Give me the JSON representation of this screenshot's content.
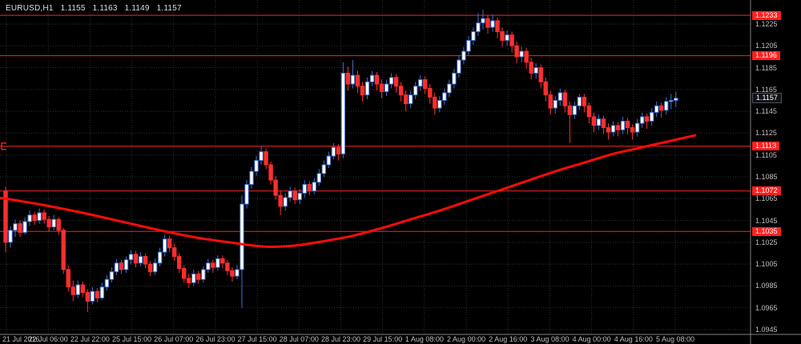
{
  "header": {
    "symbol_period": "EURUSD,H1",
    "open": "1.1155",
    "high": "1.1163",
    "low": "1.1149",
    "close": "1.1157"
  },
  "colors": {
    "background": "#000000",
    "grid": "#303030",
    "bull_fill": "#ffffff",
    "bull_border": "#3e6fd0",
    "bear": "#ff2e2e",
    "ma_line": "#ff0b0b",
    "level_line": "#ff2020",
    "level_chip_bg": "#ff2020",
    "level_chip_text": "#ffffff",
    "current_chip_bg": "#101418",
    "current_chip_text": "#ffffff",
    "axis_text": "#bfbfbf",
    "axis_line": "#808080"
  },
  "chart_data": {
    "type": "candlestick",
    "title": "EURUSD,H1",
    "price_scale": 0.0001,
    "y_range": [
      1.09406,
      1.1247
    ],
    "y_ticks": [
      1.1225,
      1.1205,
      1.1185,
      1.1165,
      1.1145,
      1.1125,
      1.1105,
      1.1085,
      1.1065,
      1.1045,
      1.1025,
      1.1005,
      1.0985,
      1.0965,
      1.0945
    ],
    "time_labels": [
      "21 Jul 2016",
      "22 Jul 06:00",
      "22 Jul 22:00",
      "25 Jul 15:00",
      "26 Jul 07:00",
      "26 Jul 23:00",
      "27 Jul 15:00",
      "28 Jul 07:00",
      "28 Jul 23:00",
      "29 Jul 15:00",
      "1 Aug 08:00",
      "2 Aug 00:00",
      "2 Aug 16:00",
      "3 Aug 08:00",
      "4 Aug 00:00",
      "4 Aug 16:00",
      "5 Aug 08:00"
    ],
    "levels": [
      1.1233,
      1.1196,
      1.1113,
      1.1072,
      1.1035
    ],
    "level_marker_price": 1.1113,
    "current_price": 1.1157,
    "ma_points": [
      [
        -1,
        1.10655
      ],
      [
        0,
        1.1065
      ],
      [
        8,
        1.1059
      ],
      [
        16,
        1.1052
      ],
      [
        24,
        1.1044
      ],
      [
        32,
        1.1036
      ],
      [
        40,
        1.1029
      ],
      [
        48,
        1.1024
      ],
      [
        54,
        1.1021
      ],
      [
        60,
        1.1022
      ],
      [
        66,
        1.1026
      ],
      [
        72,
        1.1031
      ],
      [
        78,
        1.1038
      ],
      [
        84,
        1.1046
      ],
      [
        90,
        1.1054
      ],
      [
        96,
        1.1063
      ],
      [
        102,
        1.1072
      ],
      [
        108,
        1.1081
      ],
      [
        114,
        1.109
      ],
      [
        120,
        1.1098
      ],
      [
        126,
        1.1106
      ],
      [
        132,
        1.1112
      ],
      [
        138,
        1.1118
      ],
      [
        143,
        1.1123
      ]
    ],
    "candles": [
      [
        11072,
        11076,
        11016,
        11025
      ],
      [
        11025,
        11040,
        11020,
        11036
      ],
      [
        11036,
        11046,
        11030,
        11042
      ],
      [
        11042,
        11045,
        11030,
        11034
      ],
      [
        11034,
        11048,
        11032,
        11044
      ],
      [
        11044,
        11054,
        11040,
        11050
      ],
      [
        11050,
        11053,
        11041,
        11045
      ],
      [
        11045,
        11056,
        11042,
        11052
      ],
      [
        11052,
        11055,
        11042,
        11046
      ],
      [
        11046,
        11049,
        11035,
        11039
      ],
      [
        11039,
        11050,
        11036,
        11046
      ],
      [
        11046,
        11048,
        11032,
        11036
      ],
      [
        11036,
        11038,
        10996,
        11000
      ],
      [
        11000,
        11004,
        10980,
        10984
      ],
      [
        10984,
        10990,
        10971,
        10977
      ],
      [
        10977,
        10990,
        10974,
        10986
      ],
      [
        10986,
        10989,
        10975,
        10979
      ],
      [
        10979,
        10982,
        10961,
        10971
      ],
      [
        10971,
        10984,
        10968,
        10980
      ],
      [
        10980,
        10983,
        10970,
        10974
      ],
      [
        10974,
        10988,
        10972,
        10984
      ],
      [
        10984,
        10995,
        10981,
        10991
      ],
      [
        10991,
        11002,
        10988,
        10998
      ],
      [
        10998,
        11010,
        10995,
        11006
      ],
      [
        11006,
        11009,
        10996,
        11000
      ],
      [
        11000,
        11012,
        10997,
        11009
      ],
      [
        11009,
        11018,
        11005,
        11014
      ],
      [
        11014,
        11017,
        11002,
        11006
      ],
      [
        11006,
        11016,
        11003,
        11012
      ],
      [
        11012,
        11015,
        11001,
        11005
      ],
      [
        11005,
        11008,
        10994,
        10998
      ],
      [
        10998,
        11010,
        10995,
        11006
      ],
      [
        11006,
        11020,
        11003,
        11016
      ],
      [
        11016,
        11032,
        11012,
        11028
      ],
      [
        11028,
        11031,
        11016,
        11020
      ],
      [
        11020,
        11024,
        11008,
        11012
      ],
      [
        11012,
        11015,
        10997,
        11001
      ],
      [
        11001,
        11004,
        10988,
        10992
      ],
      [
        10992,
        10996,
        10983,
        10988
      ],
      [
        10988,
        11000,
        10985,
        10996
      ],
      [
        10996,
        10999,
        10987,
        10991
      ],
      [
        10991,
        11003,
        10988,
        11000
      ],
      [
        11000,
        11010,
        10997,
        11006
      ],
      [
        11006,
        11009,
        10997,
        11002
      ],
      [
        11002,
        11013,
        10999,
        11010
      ],
      [
        11010,
        11013,
        11001,
        11006
      ],
      [
        11006,
        11009,
        10995,
        10999
      ],
      [
        10999,
        11002,
        10989,
        10994
      ],
      [
        10994,
        11004,
        10991,
        11000
      ],
      [
        11000,
        11068,
        10965,
        11060
      ],
      [
        11060,
        11082,
        11056,
        11078
      ],
      [
        11078,
        11094,
        11074,
        11090
      ],
      [
        11090,
        11104,
        11086,
        11100
      ],
      [
        11100,
        11113,
        11096,
        11108
      ],
      [
        11108,
        11111,
        11092,
        11096
      ],
      [
        11096,
        11099,
        11078,
        11082
      ],
      [
        11082,
        11086,
        11064,
        11068
      ],
      [
        11068,
        11072,
        11050,
        11058
      ],
      [
        11058,
        11070,
        11054,
        11066
      ],
      [
        11066,
        11076,
        11062,
        11072
      ],
      [
        11072,
        11075,
        11060,
        11064
      ],
      [
        11064,
        11074,
        11060,
        11070
      ],
      [
        11070,
        11082,
        11066,
        11078
      ],
      [
        11078,
        11081,
        11068,
        11072
      ],
      [
        11072,
        11084,
        11069,
        11080
      ],
      [
        11080,
        11092,
        11077,
        11088
      ],
      [
        11088,
        11100,
        11085,
        11096
      ],
      [
        11096,
        11108,
        11093,
        11104
      ],
      [
        11104,
        11116,
        11101,
        11112
      ],
      [
        11112,
        11115,
        11100,
        11106
      ],
      [
        11106,
        11190,
        11102,
        11180
      ],
      [
        11180,
        11186,
        11164,
        11170
      ],
      [
        11170,
        11192,
        11166,
        11178
      ],
      [
        11178,
        11182,
        11162,
        11168
      ],
      [
        11168,
        11172,
        11154,
        11160
      ],
      [
        11160,
        11176,
        11156,
        11172
      ],
      [
        11172,
        11182,
        11168,
        11178
      ],
      [
        11178,
        11181,
        11164,
        11170
      ],
      [
        11170,
        11174,
        11157,
        11163
      ],
      [
        11163,
        11174,
        11159,
        11170
      ],
      [
        11170,
        11180,
        11166,
        11176
      ],
      [
        11176,
        11179,
        11162,
        11168
      ],
      [
        11168,
        11172,
        11154,
        11160
      ],
      [
        11160,
        11164,
        11145,
        11152
      ],
      [
        11152,
        11164,
        11148,
        11160
      ],
      [
        11160,
        11172,
        11156,
        11168
      ],
      [
        11168,
        11178,
        11164,
        11174
      ],
      [
        11174,
        11177,
        11161,
        11166
      ],
      [
        11166,
        11170,
        11152,
        11158
      ],
      [
        11158,
        11162,
        11142,
        11148
      ],
      [
        11148,
        11159,
        11144,
        11155
      ],
      [
        11155,
        11166,
        11151,
        11162
      ],
      [
        11162,
        11174,
        11158,
        11170
      ],
      [
        11170,
        11184,
        11166,
        11180
      ],
      [
        11180,
        11196,
        11176,
        11192
      ],
      [
        11192,
        11204,
        11188,
        11200
      ],
      [
        11200,
        11214,
        11196,
        11210
      ],
      [
        11210,
        11222,
        11206,
        11218
      ],
      [
        11218,
        11235,
        11214,
        11226
      ],
      [
        11226,
        11238,
        11220,
        11230
      ],
      [
        11230,
        11233,
        11216,
        11222
      ],
      [
        11222,
        11234,
        11218,
        11228
      ],
      [
        11228,
        11231,
        11212,
        11218
      ],
      [
        11218,
        11222,
        11204,
        11210
      ],
      [
        11210,
        11219,
        11205,
        11215
      ],
      [
        11215,
        11218,
        11199,
        11205
      ],
      [
        11205,
        11209,
        11189,
        11195
      ],
      [
        11195,
        11204,
        11190,
        11200
      ],
      [
        11200,
        11203,
        11184,
        11190
      ],
      [
        11190,
        11194,
        11174,
        11180
      ],
      [
        11180,
        11189,
        11175,
        11185
      ],
      [
        11185,
        11188,
        11166,
        11172
      ],
      [
        11172,
        11176,
        11154,
        11160
      ],
      [
        11160,
        11164,
        11142,
        11148
      ],
      [
        11148,
        11159,
        11143,
        11155
      ],
      [
        11155,
        11166,
        11150,
        11162
      ],
      [
        11162,
        11165,
        11144,
        11150
      ],
      [
        11150,
        11154,
        11116,
        11142
      ],
      [
        11142,
        11154,
        11138,
        11150
      ],
      [
        11150,
        11161,
        11146,
        11158
      ],
      [
        11158,
        11161,
        11144,
        11150
      ],
      [
        11150,
        11153,
        11134,
        11140
      ],
      [
        11140,
        11144,
        11126,
        11132
      ],
      [
        11132,
        11142,
        11128,
        11138
      ],
      [
        11138,
        11141,
        11124,
        11130
      ],
      [
        11130,
        11134,
        11119,
        11126
      ],
      [
        11126,
        11136,
        11122,
        11132
      ],
      [
        11132,
        11135,
        11122,
        11128
      ],
      [
        11128,
        11140,
        11124,
        11136
      ],
      [
        11136,
        11139,
        11124,
        11130
      ],
      [
        11130,
        11133,
        11119,
        11126
      ],
      [
        11126,
        11138,
        11122,
        11134
      ],
      [
        11134,
        11144,
        11130,
        11140
      ],
      [
        11140,
        11143,
        11129,
        11136
      ],
      [
        11136,
        11148,
        11132,
        11144
      ],
      [
        11144,
        11154,
        11140,
        11150
      ],
      [
        11150,
        11153,
        11139,
        11146
      ],
      [
        11146,
        11158,
        11142,
        11154
      ],
      [
        11154,
        11161,
        11147,
        11155
      ],
      [
        11155,
        11163,
        11149,
        11157
      ]
    ]
  }
}
